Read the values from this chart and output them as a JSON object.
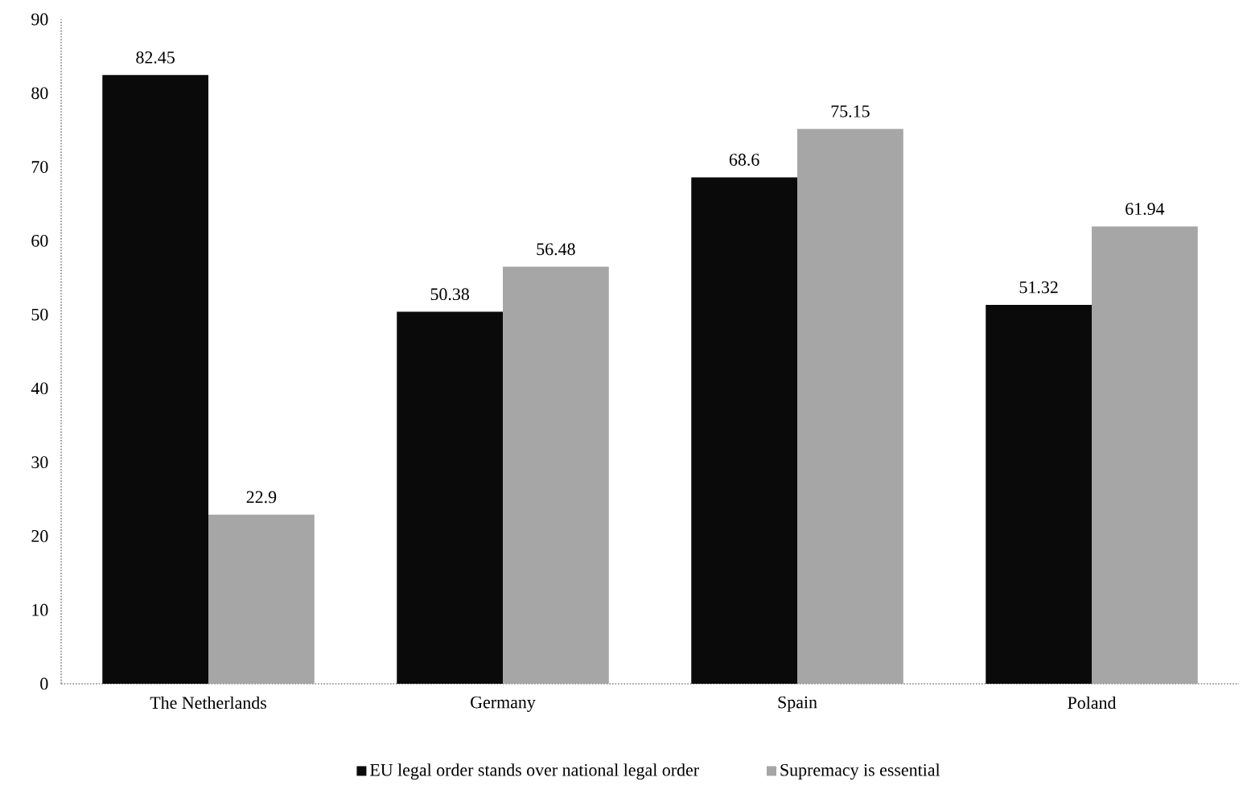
{
  "chart_data": {
    "type": "bar",
    "categories": [
      "The Netherlands",
      "Germany",
      "Spain",
      "Poland"
    ],
    "series": [
      {
        "name": "EU legal order stands over national legal order",
        "color": "#0a0a0a",
        "values": [
          82.45,
          50.38,
          68.6,
          51.32
        ]
      },
      {
        "name": "Supremacy is essential",
        "color": "#a6a6a6",
        "values": [
          22.9,
          56.48,
          75.15,
          61.94
        ]
      }
    ],
    "ylim": [
      0,
      90
    ],
    "yticks": [
      0,
      10,
      20,
      30,
      40,
      50,
      60,
      70,
      80,
      90
    ],
    "grid": false,
    "legend": "bottom",
    "data_labels": true
  }
}
